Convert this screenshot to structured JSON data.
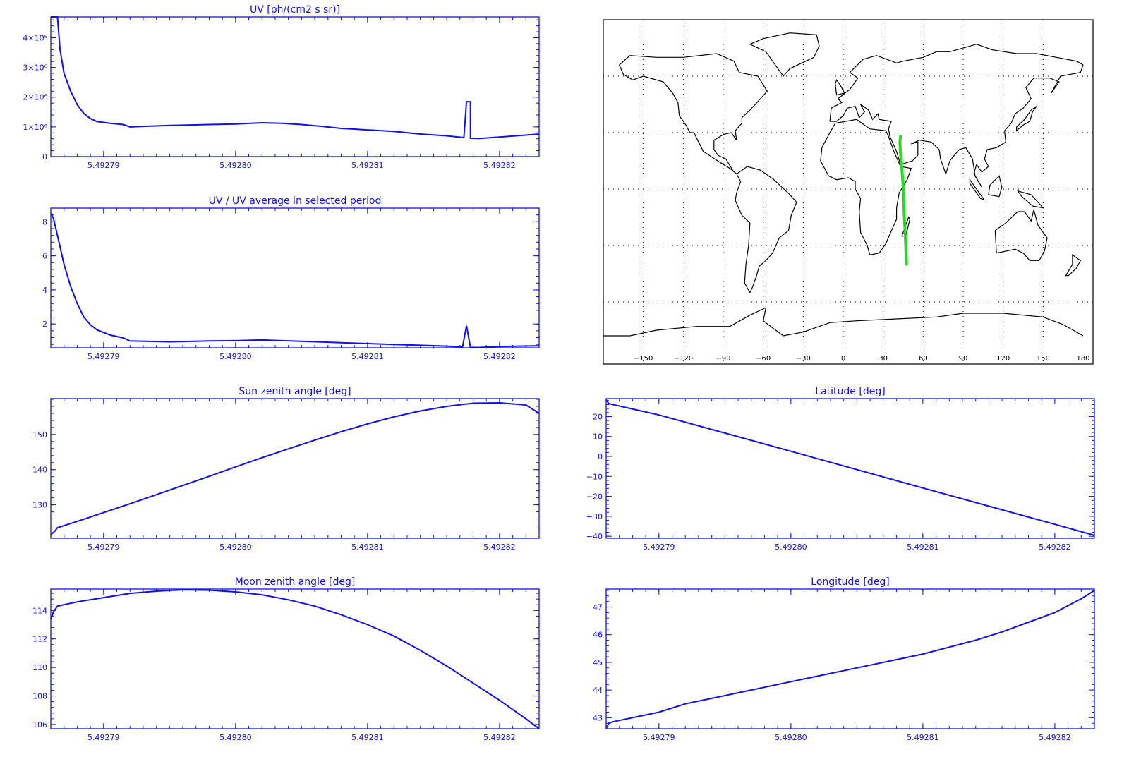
{
  "colors": {
    "axes": "#1010ee",
    "series": "#1010ee",
    "track": "#22dd22",
    "coast": "#000000",
    "background": "#ffffff"
  },
  "chart_data": [
    {
      "type": "line",
      "title": "UV [ph/(cm2 s sr)]",
      "xlabel": "",
      "ylabel": "",
      "xlim": [
        5.492786,
        5.492823
      ],
      "ylim": [
        0,
        4700000
      ],
      "xticks": [
        5.49279,
        5.4928,
        5.49281,
        5.49282
      ],
      "xtick_labels": [
        "5.49279",
        "5.49280",
        "5.49281",
        "5.49282"
      ],
      "yticks": [
        0,
        1000000,
        2000000,
        3000000,
        4000000
      ],
      "ytick_labels": [
        "0",
        "1×10⁶",
        "2×10⁶",
        "3×10⁶",
        "4×10⁶"
      ],
      "grid": false,
      "series": [
        {
          "x": [
            5.492786,
            5.4927865,
            5.4927867,
            5.492787,
            5.4927875,
            5.492788,
            5.4927885,
            5.492789,
            5.4927895,
            5.4927905,
            5.4927915,
            5.492792,
            5.492795,
            5.492798,
            5.4928,
            5.492802,
            5.4928035,
            5.492805,
            5.4928065,
            5.492808,
            5.49281,
            5.492812,
            5.492814,
            5.492816,
            5.4928173,
            5.4928175,
            5.4928175,
            5.4928178,
            5.4928178,
            5.4928185,
            5.49282,
            5.492823
          ],
          "y": [
            4700000,
            4700000,
            3600000,
            2800000,
            2200000,
            1750000,
            1450000,
            1280000,
            1180000,
            1120000,
            1080000,
            1000000,
            1050000,
            1080000,
            1100000,
            1140000,
            1120000,
            1080000,
            1020000,
            950000,
            900000,
            850000,
            760000,
            700000,
            640000,
            1850000,
            1850000,
            1850000,
            620000,
            610000,
            660000,
            760000
          ]
        }
      ]
    },
    {
      "type": "line",
      "title": "UV / UV average in selected period",
      "xlabel": "",
      "ylabel": "",
      "xlim": [
        5.492786,
        5.492823
      ],
      "ylim": [
        0.6,
        8.8
      ],
      "xticks": [
        5.49279,
        5.4928,
        5.49281,
        5.49282
      ],
      "xtick_labels": [
        "5.49279",
        "5.49280",
        "5.49281",
        "5.49282"
      ],
      "yticks": [
        2,
        4,
        6,
        8
      ],
      "ytick_labels": [
        "2",
        "4",
        "6",
        "8"
      ],
      "grid": false,
      "series": [
        {
          "x": [
            5.492786,
            5.4927862,
            5.4927865,
            5.492787,
            5.4927875,
            5.492788,
            5.4927885,
            5.492789,
            5.4927895,
            5.4927905,
            5.4927915,
            5.492792,
            5.492795,
            5.492798,
            5.4928,
            5.492802,
            5.4928035,
            5.492805,
            5.492808,
            5.49281,
            5.492812,
            5.492814,
            5.492816,
            5.4928172,
            5.4928175,
            5.4928178,
            5.4928185,
            5.49282,
            5.492823
          ],
          "y": [
            8.5,
            8.2,
            7.2,
            5.5,
            4.2,
            3.2,
            2.4,
            1.95,
            1.65,
            1.35,
            1.18,
            1.0,
            0.95,
            1.0,
            1.02,
            1.06,
            1.02,
            0.98,
            0.9,
            0.85,
            0.8,
            0.75,
            0.7,
            0.65,
            1.9,
            0.62,
            0.62,
            0.68,
            0.72
          ]
        }
      ]
    },
    {
      "type": "line",
      "title": "Sun zenith angle [deg]",
      "xlabel": "",
      "ylabel": "",
      "xlim": [
        5.492786,
        5.492823
      ],
      "ylim": [
        120.5,
        160.2
      ],
      "xticks": [
        5.49279,
        5.4928,
        5.49281,
        5.49282
      ],
      "xtick_labels": [
        "5.49279",
        "5.49280",
        "5.49281",
        "5.49282"
      ],
      "yticks": [
        130,
        140,
        150
      ],
      "ytick_labels": [
        "130",
        "140",
        "150"
      ],
      "grid": false,
      "series": [
        {
          "x": [
            5.492786,
            5.4927863,
            5.4927865,
            5.492788,
            5.49279,
            5.492792,
            5.492794,
            5.492796,
            5.492798,
            5.4928,
            5.492802,
            5.492804,
            5.492806,
            5.492808,
            5.49281,
            5.492812,
            5.492814,
            5.492816,
            5.492818,
            5.49282,
            5.492822,
            5.492823
          ],
          "y": [
            121.5,
            122.5,
            123.5,
            125.3,
            127.8,
            130.3,
            132.9,
            135.5,
            138.1,
            140.8,
            143.4,
            145.9,
            148.4,
            150.8,
            153.0,
            155.0,
            156.7,
            158.0,
            158.9,
            159.0,
            158.4,
            156.0
          ]
        }
      ]
    },
    {
      "type": "line",
      "title": "Moon zenith angle [deg]",
      "xlabel": "",
      "ylabel": "",
      "xlim": [
        5.492786,
        5.492823
      ],
      "ylim": [
        105.7,
        115.5
      ],
      "xticks": [
        5.49279,
        5.4928,
        5.49281,
        5.49282
      ],
      "xtick_labels": [
        "5.49279",
        "5.49280",
        "5.49281",
        "5.49282"
      ],
      "yticks": [
        106,
        108,
        110,
        112,
        114
      ],
      "ytick_labels": [
        "106",
        "108",
        "110",
        "112",
        "114"
      ],
      "grid": false,
      "series": [
        {
          "x": [
            5.492786,
            5.4927862,
            5.4927865,
            5.492788,
            5.49279,
            5.492792,
            5.492794,
            5.492796,
            5.492798,
            5.4928,
            5.492802,
            5.492804,
            5.492806,
            5.492808,
            5.49281,
            5.492812,
            5.492814,
            5.492816,
            5.492818,
            5.49282,
            5.492822,
            5.492823
          ],
          "y": [
            113.4,
            113.9,
            114.3,
            114.6,
            114.9,
            115.2,
            115.35,
            115.45,
            115.42,
            115.3,
            115.1,
            114.75,
            114.3,
            113.7,
            113.0,
            112.2,
            111.2,
            110.1,
            108.9,
            107.7,
            106.4,
            105.7
          ]
        }
      ]
    },
    {
      "type": "line",
      "title": "Latitude [deg]",
      "xlabel": "",
      "ylabel": "",
      "xlim": [
        5.492786,
        5.492823
      ],
      "ylim": [
        -41,
        29
      ],
      "xticks": [
        5.49279,
        5.4928,
        5.49281,
        5.49282
      ],
      "xtick_labels": [
        "5.49279",
        "5.49280",
        "5.49281",
        "5.49282"
      ],
      "yticks": [
        -40,
        -30,
        -20,
        -10,
        0,
        10,
        20
      ],
      "ytick_labels": [
        "−40",
        "−30",
        "−20",
        "−10",
        "0",
        "10",
        "20"
      ],
      "grid": false,
      "series": [
        {
          "x": [
            5.492786,
            5.4927862,
            5.49279,
            5.492795,
            5.4928,
            5.492805,
            5.49281,
            5.492815,
            5.49282,
            5.492823
          ],
          "y": [
            28.5,
            26.5,
            20.8,
            11.7,
            2.6,
            -6.6,
            -15.8,
            -24.9,
            -34.0,
            -39.5
          ]
        }
      ]
    },
    {
      "type": "line",
      "title": "Longitude [deg]",
      "xlabel": "",
      "ylabel": "",
      "xlim": [
        5.492786,
        5.492823
      ],
      "ylim": [
        42.6,
        47.65
      ],
      "xticks": [
        5.49279,
        5.4928,
        5.49281,
        5.49282
      ],
      "xtick_labels": [
        "5.49279",
        "5.49280",
        "5.49281",
        "5.49282"
      ],
      "yticks": [
        43,
        44,
        45,
        46,
        47
      ],
      "ytick_labels": [
        "43",
        "44",
        "45",
        "46",
        "47"
      ],
      "grid": false,
      "series": [
        {
          "x": [
            5.492786,
            5.4927862,
            5.4927865,
            5.492788,
            5.49279,
            5.492792,
            5.492794,
            5.492796,
            5.492798,
            5.4928,
            5.492802,
            5.492804,
            5.492806,
            5.492808,
            5.49281,
            5.492812,
            5.492814,
            5.492816,
            5.492818,
            5.49282,
            5.492822,
            5.492823
          ],
          "y": [
            42.6,
            42.8,
            42.85,
            43.0,
            43.2,
            43.5,
            43.7,
            43.9,
            44.1,
            44.3,
            44.5,
            44.7,
            44.9,
            45.1,
            45.3,
            45.55,
            45.8,
            46.1,
            46.45,
            46.8,
            47.3,
            47.6
          ]
        }
      ]
    },
    {
      "type": "line",
      "title": "",
      "xlabel": "",
      "ylabel": "",
      "xlim": [
        -180,
        180
      ],
      "ylim": [
        -90,
        90
      ],
      "xticks": [
        -150,
        -120,
        -90,
        -60,
        -30,
        0,
        30,
        60,
        90,
        120,
        150,
        180
      ],
      "xtick_labels": [
        "−150",
        "−120",
        "−90",
        "−60",
        "−30",
        "0",
        "30",
        "60",
        "90",
        "120",
        "150",
        "180"
      ],
      "yticks": [
        -60,
        -30,
        0,
        30,
        60
      ],
      "grid": true,
      "series": [
        {
          "x": [
            43,
            42.5,
            43,
            44,
            44.8,
            45.3,
            45.7,
            46.3,
            46.8,
            47.3,
            47.5
          ],
          "y": [
            28,
            25,
            19,
            11,
            3,
            -5,
            -13,
            -21,
            -29,
            -36,
            -40
          ]
        }
      ]
    }
  ]
}
